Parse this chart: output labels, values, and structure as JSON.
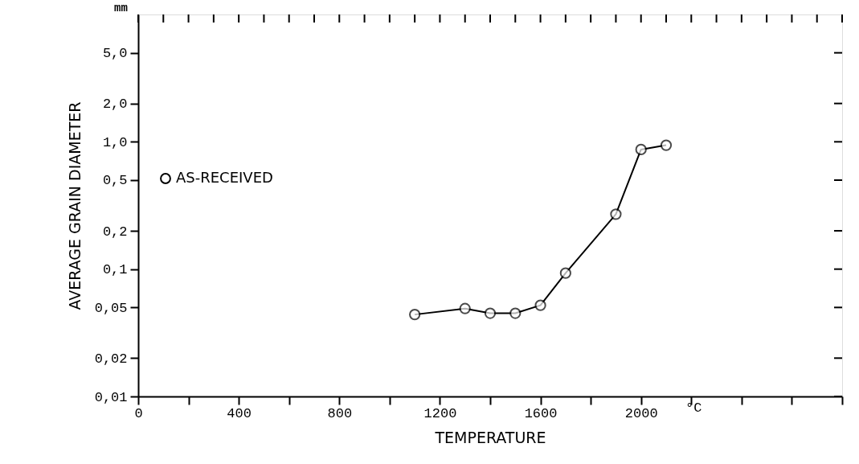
{
  "chart_data": {
    "type": "line",
    "xlabel": "TEMPERATURE",
    "ylabel": "AVERAGE  GRAIN  DIAMETER",
    "annotations": [
      "mm",
      "°C"
    ],
    "x": [
      1100,
      1300,
      1400,
      1500,
      1600,
      1700,
      1900,
      2000,
      2100
    ],
    "series": [
      {
        "name": "AS-RECEIVED",
        "color": "#000000",
        "values": [
          0.044,
          0.049,
          0.045,
          0.045,
          0.052,
          0.093,
          0.27,
          0.87,
          0.94
        ]
      }
    ],
    "xlim": [
      0,
      2800
    ],
    "xticks": [
      0,
      {
        "value": 100,
        "label": null
      },
      {
        "value": 200,
        "label": null
      },
      {
        "value": 300,
        "label": null
      },
      400,
      {
        "value": 500,
        "label": null
      },
      {
        "value": 600,
        "label": null
      },
      {
        "value": 700,
        "label": null
      },
      800,
      {
        "value": 900,
        "label": null
      },
      {
        "value": 1000,
        "label": null
      },
      {
        "value": 1100,
        "label": null
      },
      1200,
      {
        "value": 1300,
        "label": null
      },
      {
        "value": 1400,
        "label": null
      },
      {
        "value": 1500,
        "label": null
      },
      1600,
      {
        "value": 1700,
        "label": null
      },
      {
        "value": 1800,
        "label": null
      },
      {
        "value": 1900,
        "label": null
      },
      2000,
      {
        "value": 2100,
        "label": null
      },
      {
        "value": 2200,
        "label": null
      },
      {
        "value": 2300,
        "label": null
      },
      {
        "value": 2400,
        "label": null
      },
      {
        "value": 2500,
        "label": null
      },
      {
        "value": 2600,
        "label": null
      },
      {
        "value": 2700,
        "label": null
      },
      {
        "value": 2800,
        "label": null
      }
    ],
    "ylim": [
      0.01,
      10
    ],
    "yticks": [
      {
        "value": 0.01,
        "label": "0,01"
      },
      {
        "value": 0.02,
        "label": "0,02"
      },
      {
        "value": 0.05,
        "label": "0,05"
      },
      {
        "value": 0.1,
        "label": "0,1"
      },
      {
        "value": 0.2,
        "label": "0,2"
      },
      {
        "value": 0.5,
        "label": "0,5"
      },
      {
        "value": 1,
        "label": "1,0"
      },
      {
        "value": 2,
        "label": "2,0"
      },
      {
        "value": 5,
        "label": "5,0"
      }
    ],
    "log": "y",
    "grid": false,
    "legend": "left",
    "marker": "circle",
    "line_style": "solid"
  }
}
